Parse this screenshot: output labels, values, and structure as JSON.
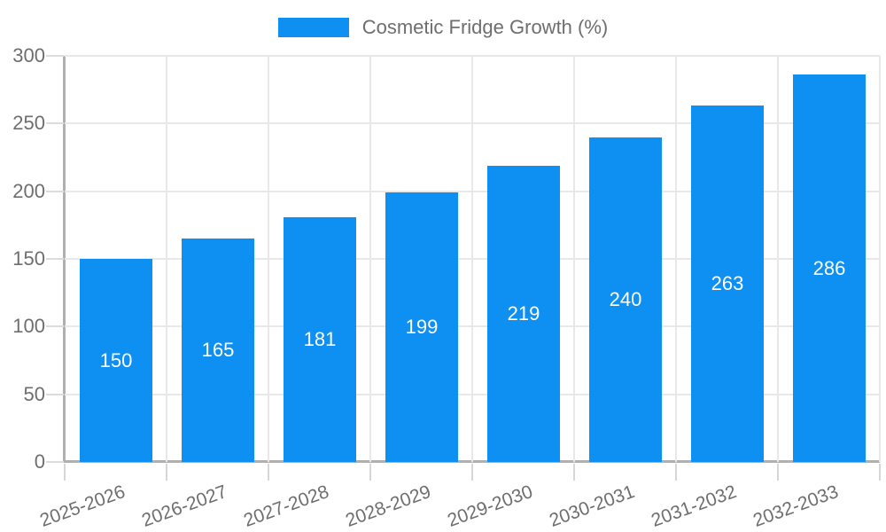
{
  "chart_data": {
    "type": "bar",
    "legend_label": "Cosmetic Fridge Growth (%)",
    "legend_position": "top",
    "categories": [
      "2025-2026",
      "2026-2027",
      "2027-2028",
      "2028-2029",
      "2029-2030",
      "2030-2031",
      "2031-2032",
      "2032-2033"
    ],
    "values": [
      150,
      165,
      181,
      199,
      219,
      240,
      263,
      286
    ],
    "xlabel": "",
    "ylabel": "",
    "ylim": [
      0,
      300
    ],
    "yticks": [
      0,
      50,
      100,
      150,
      200,
      250,
      300
    ],
    "grid": true,
    "colors": {
      "bar": "#0e90f2",
      "value_label": "#ffffff",
      "axis_text": "#6e6e6e",
      "axis_line": "#b0b0b0",
      "gridline": "#e8e8e8"
    }
  }
}
